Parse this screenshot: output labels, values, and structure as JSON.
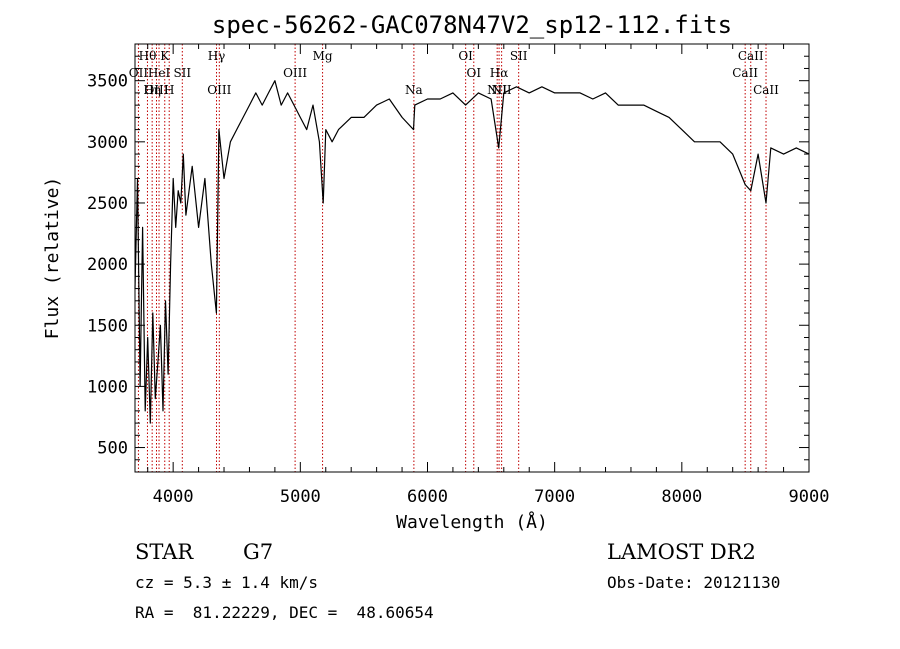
{
  "chart_data": {
    "type": "line",
    "title": "spec-56262-GAC078N47V2_sp12-112.fits",
    "xlabel": "Wavelength (Å)",
    "ylabel": "Flux (relative)",
    "xlim": [
      3700,
      9000
    ],
    "ylim": [
      300,
      3800
    ],
    "xticks": [
      4000,
      5000,
      6000,
      7000,
      8000,
      9000
    ],
    "yticks": [
      500,
      1000,
      1500,
      2000,
      2500,
      3000,
      3500
    ],
    "grid": false,
    "line_color": "#000000",
    "marker_color": "#c00000",
    "series": [
      {
        "x": [
          3700,
          3720,
          3740,
          3760,
          3780,
          3800,
          3820,
          3840,
          3860,
          3880,
          3900,
          3920,
          3940,
          3960,
          3980,
          4000,
          4020,
          4040,
          4060,
          4080,
          4100,
          4150,
          4200,
          4250,
          4300,
          4340,
          4360,
          4400,
          4450,
          4500,
          4550,
          4600,
          4650,
          4700,
          4750,
          4800,
          4850,
          4900,
          4950,
          5000,
          5050,
          5100,
          5150,
          5180,
          5200,
          5250,
          5300,
          5400,
          5500,
          5600,
          5700,
          5800,
          5890,
          5900,
          6000,
          6100,
          6200,
          6300,
          6400,
          6500,
          6560,
          6600,
          6700,
          6800,
          6900,
          7000,
          7100,
          7200,
          7300,
          7400,
          7500,
          7600,
          7700,
          7800,
          7900,
          8000,
          8100,
          8200,
          8300,
          8400,
          8498,
          8542,
          8600,
          8662,
          8700,
          8800,
          8900,
          9000
        ],
        "y": [
          1800,
          2700,
          1000,
          2300,
          800,
          1400,
          700,
          1600,
          900,
          1200,
          1500,
          800,
          1700,
          1100,
          2000,
          2700,
          2300,
          2600,
          2500,
          2900,
          2400,
          2800,
          2300,
          2700,
          2000,
          1600,
          3100,
          2700,
          3000,
          3100,
          3200,
          3300,
          3400,
          3300,
          3400,
          3500,
          3300,
          3400,
          3300,
          3200,
          3100,
          3300,
          3000,
          2500,
          3100,
          3000,
          3100,
          3200,
          3200,
          3300,
          3350,
          3200,
          3100,
          3300,
          3350,
          3350,
          3400,
          3300,
          3400,
          3350,
          2950,
          3400,
          3450,
          3400,
          3450,
          3400,
          3400,
          3400,
          3350,
          3400,
          3300,
          3300,
          3300,
          3250,
          3200,
          3100,
          3000,
          3000,
          3000,
          2900,
          2650,
          2600,
          2900,
          2500,
          2950,
          2900,
          2950,
          2900
        ]
      }
    ],
    "lines": [
      {
        "label": "Hθ",
        "x": 3798,
        "row": 0
      },
      {
        "label": "K",
        "x": 3934,
        "row": 0
      },
      {
        "label": "Hγ",
        "x": 4341,
        "row": 0
      },
      {
        "label": "Mg",
        "x": 5175,
        "row": 0
      },
      {
        "label": "OI",
        "x": 6300,
        "row": 0
      },
      {
        "label": "SII",
        "x": 6717,
        "row": 0
      },
      {
        "label": "CaII",
        "x": 8542,
        "row": 0
      },
      {
        "label": "OII",
        "x": 3727,
        "row": 1
      },
      {
        "label": "HeI",
        "x": 3889,
        "row": 1
      },
      {
        "label": "SII",
        "x": 4072,
        "row": 1
      },
      {
        "label": "OIII",
        "x": 4959,
        "row": 1
      },
      {
        "label": "OI",
        "x": 6364,
        "row": 1
      },
      {
        "label": "Hα",
        "x": 6563,
        "row": 1
      },
      {
        "label": "CaII",
        "x": 8498,
        "row": 1
      },
      {
        "label": "OIII",
        "x": 3869,
        "row": 2
      },
      {
        "label": "Hη",
        "x": 3835,
        "row": 2
      },
      {
        "label": "H",
        "x": 3969,
        "row": 2
      },
      {
        "label": "OIII",
        "x": 4363,
        "row": 2
      },
      {
        "label": "Na",
        "x": 5893,
        "row": 2
      },
      {
        "label": "NII",
        "x": 6583,
        "row": 2
      },
      {
        "label": "NII",
        "x": 6548,
        "row": 2
      },
      {
        "label": "CaII",
        "x": 8662,
        "row": 2
      }
    ]
  },
  "info": {
    "class": "STAR",
    "subclass": "G7",
    "release": "LAMOST DR2",
    "cz": "cz = 5.3 ± 1.4 km/s",
    "obsdate": "Obs-Date: 20121130",
    "radec": "RA =  81.22229, DEC =  48.60654"
  }
}
